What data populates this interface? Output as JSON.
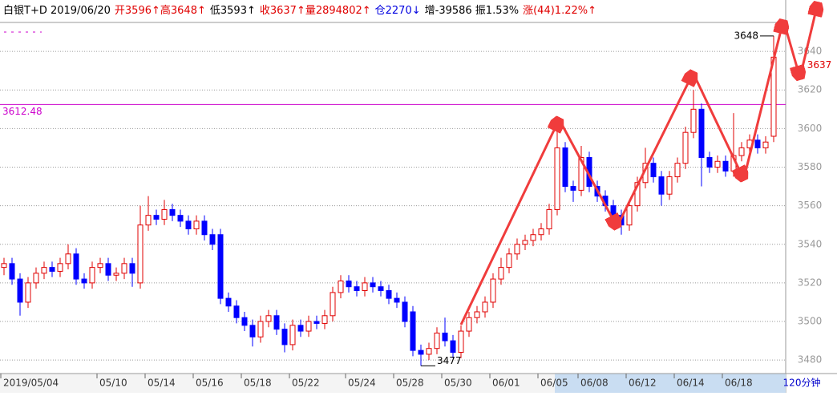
{
  "header": {
    "items": [
      {
        "text": "白银T+D 2019/06/20",
        "color": "#000000"
      },
      {
        "text": "开3596↑高3648↑",
        "color": "#e00000"
      },
      {
        "text": "低3593↑",
        "color": "#000000"
      },
      {
        "text": "收3637↑量2894802↑",
        "color": "#e00000"
      },
      {
        "text": "仓2270↓",
        "color": "#0000e0"
      },
      {
        "text": "增-39586 振1.53%",
        "color": "#000000"
      },
      {
        "text": "涨(44)1.22%↑",
        "color": "#e00000"
      }
    ]
  },
  "chart_data": {
    "type": "candlestick",
    "period": "120分钟",
    "ylim": [
      3473,
      3655
    ],
    "yticks": [
      3480,
      3500,
      3520,
      3540,
      3560,
      3580,
      3600,
      3620,
      3640
    ],
    "grid": true,
    "up_color": "#e00000",
    "down_color": "#0000ff",
    "ref_line": 3612.48,
    "ref_color": "#cc00cc",
    "categories": [
      "2019/05/04",
      null,
      null,
      null,
      null,
      null,
      null,
      null,
      null,
      null,
      null,
      null,
      "05/10",
      null,
      null,
      null,
      null,
      null,
      "05/14",
      null,
      null,
      null,
      null,
      null,
      "05/16",
      null,
      null,
      null,
      null,
      null,
      "05/18",
      null,
      null,
      null,
      null,
      null,
      "05/22",
      null,
      null,
      null,
      null,
      null,
      null,
      "05/24",
      null,
      null,
      null,
      null,
      null,
      "05/28",
      null,
      null,
      null,
      null,
      null,
      "05/30",
      null,
      null,
      null,
      null,
      null,
      "06/01",
      null,
      null,
      null,
      null,
      null,
      "06/05",
      null,
      null,
      null,
      null,
      "06/08",
      null,
      null,
      null,
      null,
      null,
      "06/12",
      null,
      null,
      null,
      null,
      null,
      "06/14",
      null,
      null,
      null,
      null,
      null,
      "06/18",
      null,
      null,
      null,
      null,
      null,
      null
    ],
    "ohlc": [
      [
        3528,
        3533,
        3524,
        3530
      ],
      [
        3530,
        3533,
        3519,
        3522
      ],
      [
        3522,
        3525,
        3503,
        3510
      ],
      [
        3510,
        3523,
        3507,
        3520
      ],
      [
        3520,
        3528,
        3517,
        3525
      ],
      [
        3525,
        3531,
        3522,
        3528
      ],
      [
        3528,
        3531,
        3523,
        3526
      ],
      [
        3526,
        3533,
        3523,
        3530
      ],
      [
        3530,
        3540,
        3527,
        3535
      ],
      [
        3535,
        3538,
        3519,
        3522
      ],
      [
        3522,
        3525,
        3517,
        3520
      ],
      [
        3520,
        3531,
        3517,
        3528
      ],
      [
        3528,
        3533,
        3525,
        3530
      ],
      [
        3530,
        3533,
        3521,
        3524
      ],
      [
        3524,
        3528,
        3521,
        3525
      ],
      [
        3525,
        3533,
        3522,
        3530
      ],
      [
        3530,
        3533,
        3518,
        3525
      ],
      [
        3520,
        3560,
        3517,
        3550
      ],
      [
        3550,
        3565,
        3547,
        3555
      ],
      [
        3555,
        3558,
        3550,
        3553
      ],
      [
        3553,
        3563,
        3550,
        3558
      ],
      [
        3558,
        3561,
        3552,
        3555
      ],
      [
        3555,
        3558,
        3549,
        3552
      ],
      [
        3552,
        3555,
        3545,
        3548
      ],
      [
        3548,
        3555,
        3545,
        3552
      ],
      [
        3552,
        3555,
        3542,
        3545
      ],
      [
        3545,
        3548,
        3537,
        3540
      ],
      [
        3545,
        3548,
        3509,
        3512
      ],
      [
        3512,
        3515,
        3505,
        3508
      ],
      [
        3508,
        3511,
        3499,
        3502
      ],
      [
        3502,
        3505,
        3495,
        3498
      ],
      [
        3498,
        3501,
        3487,
        3492
      ],
      [
        3492,
        3503,
        3489,
        3500
      ],
      [
        3500,
        3506,
        3497,
        3503
      ],
      [
        3503,
        3506,
        3493,
        3496
      ],
      [
        3496,
        3499,
        3484,
        3488
      ],
      [
        3488,
        3501,
        3485,
        3498
      ],
      [
        3498,
        3501,
        3492,
        3495
      ],
      [
        3495,
        3503,
        3492,
        3500
      ],
      [
        3500,
        3503,
        3496,
        3499
      ],
      [
        3499,
        3506,
        3496,
        3503
      ],
      [
        3503,
        3518,
        3500,
        3515
      ],
      [
        3515,
        3524,
        3512,
        3521
      ],
      [
        3521,
        3524,
        3515,
        3518
      ],
      [
        3518,
        3521,
        3513,
        3516
      ],
      [
        3516,
        3523,
        3513,
        3520
      ],
      [
        3520,
        3523,
        3515,
        3518
      ],
      [
        3518,
        3521,
        3513,
        3516
      ],
      [
        3516,
        3519,
        3509,
        3512
      ],
      [
        3512,
        3515,
        3507,
        3510
      ],
      [
        3510,
        3513,
        3497,
        3500
      ],
      [
        3505,
        3508,
        3482,
        3485
      ],
      [
        3485,
        3488,
        3477,
        3483
      ],
      [
        3483,
        3489,
        3480,
        3486
      ],
      [
        3486,
        3497,
        3483,
        3494
      ],
      [
        3494,
        3502,
        3487,
        3490
      ],
      [
        3490,
        3493,
        3481,
        3484
      ],
      [
        3484,
        3498,
        3481,
        3495
      ],
      [
        3495,
        3505,
        3492,
        3502
      ],
      [
        3502,
        3508,
        3499,
        3505
      ],
      [
        3505,
        3513,
        3502,
        3510
      ],
      [
        3510,
        3525,
        3507,
        3522
      ],
      [
        3522,
        3533,
        3519,
        3528
      ],
      [
        3528,
        3538,
        3525,
        3535
      ],
      [
        3535,
        3543,
        3532,
        3540
      ],
      [
        3540,
        3545,
        3537,
        3542
      ],
      [
        3542,
        3548,
        3539,
        3545
      ],
      [
        3545,
        3551,
        3542,
        3548
      ],
      [
        3548,
        3561,
        3545,
        3558
      ],
      [
        3558,
        3600,
        3555,
        3590
      ],
      [
        3590,
        3593,
        3567,
        3570
      ],
      [
        3570,
        3573,
        3562,
        3568
      ],
      [
        3568,
        3591,
        3565,
        3585
      ],
      [
        3585,
        3588,
        3567,
        3570
      ],
      [
        3570,
        3573,
        3562,
        3565
      ],
      [
        3565,
        3568,
        3557,
        3560
      ],
      [
        3560,
        3563,
        3552,
        3555
      ],
      [
        3555,
        3558,
        3545,
        3550
      ],
      [
        3550,
        3563,
        3547,
        3560
      ],
      [
        3560,
        3575,
        3557,
        3572
      ],
      [
        3572,
        3590,
        3569,
        3582
      ],
      [
        3582,
        3585,
        3572,
        3575
      ],
      [
        3575,
        3578,
        3560,
        3566
      ],
      [
        3566,
        3578,
        3563,
        3575
      ],
      [
        3575,
        3585,
        3572,
        3582
      ],
      [
        3582,
        3601,
        3579,
        3598
      ],
      [
        3598,
        3620,
        3595,
        3610
      ],
      [
        3610,
        3613,
        3570,
        3585
      ],
      [
        3585,
        3588,
        3577,
        3580
      ],
      [
        3580,
        3586,
        3577,
        3583
      ],
      [
        3583,
        3586,
        3575,
        3578
      ],
      [
        3578,
        3608,
        3575,
        3586
      ],
      [
        3586,
        3593,
        3583,
        3590
      ],
      [
        3590,
        3597,
        3587,
        3594
      ],
      [
        3594,
        3597,
        3587,
        3590
      ],
      [
        3590,
        3596,
        3587,
        3593
      ],
      [
        3596,
        3648,
        3593,
        3637
      ]
    ]
  }
}
